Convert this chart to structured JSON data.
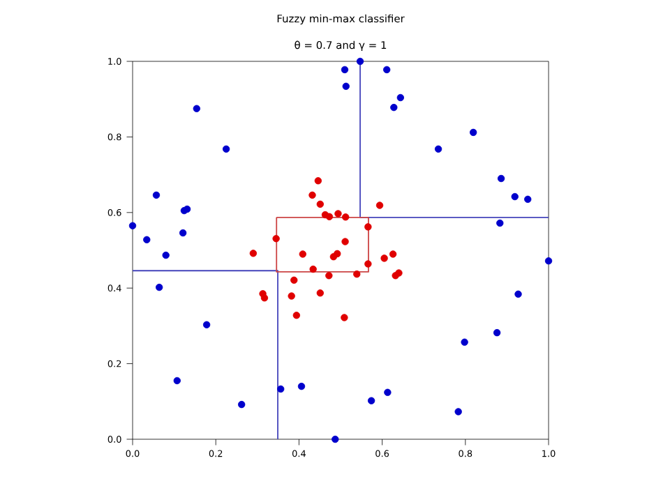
{
  "chart_data": {
    "type": "scatter",
    "title": "Fuzzy min-max classifier",
    "subtitle": "θ = 0.7 and γ = 1",
    "xlim": [
      0,
      1
    ],
    "ylim": [
      0,
      1
    ],
    "xticks": [
      {
        "value": 0,
        "label": "0.0"
      },
      {
        "value": 0.2,
        "label": "0.2"
      },
      {
        "value": 0.4,
        "label": "0.4"
      },
      {
        "value": 0.6,
        "label": "0.6"
      },
      {
        "value": 0.8,
        "label": "0.8"
      },
      {
        "value": 1,
        "label": "1.0"
      }
    ],
    "yticks": [
      {
        "value": 0,
        "label": "0.0"
      },
      {
        "value": 0.2,
        "label": "0.2"
      },
      {
        "value": 0.4,
        "label": "0.4"
      },
      {
        "value": 0.6,
        "label": "0.6"
      },
      {
        "value": 0.8,
        "label": "0.8"
      },
      {
        "value": 1,
        "label": "1.0"
      }
    ],
    "series": [
      {
        "marker": "circle",
        "color": "#0000cc",
        "x": [
          0,
          0.034,
          0.057,
          0.08,
          0.124,
          0.131,
          0.121,
          0.154,
          0.225,
          0.064,
          0.178,
          0.107,
          0.262,
          0.356,
          0.406,
          0.487,
          0.51,
          0.513,
          0.547,
          0.611,
          0.644,
          0.628,
          0.735,
          0.819,
          0.886,
          0.919,
          0.95,
          0.883,
          1.0,
          0.927,
          0.876,
          0.798,
          0.783,
          0.574,
          0.613
        ],
        "values": [
          0.565,
          0.528,
          0.646,
          0.487,
          0.605,
          0.609,
          0.546,
          0.875,
          0.768,
          0.402,
          0.303,
          0.155,
          0.092,
          0.133,
          0.14,
          0.0,
          0.978,
          0.934,
          1.0,
          0.978,
          0.904,
          0.878,
          0.768,
          0.812,
          0.69,
          0.642,
          0.635,
          0.572,
          0.472,
          0.384,
          0.282,
          0.257,
          0.073,
          0.102,
          0.124
        ]
      },
      {
        "marker": "circle",
        "color": "#e00000",
        "x": [
          0.432,
          0.446,
          0.451,
          0.463,
          0.473,
          0.494,
          0.512,
          0.345,
          0.29,
          0.594,
          0.566,
          0.511,
          0.409,
          0.434,
          0.483,
          0.492,
          0.472,
          0.388,
          0.451,
          0.382,
          0.313,
          0.317,
          0.394,
          0.509,
          0.539,
          0.566,
          0.605,
          0.626,
          0.632,
          0.64
        ],
        "values": [
          0.646,
          0.684,
          0.622,
          0.594,
          0.589,
          0.597,
          0.588,
          0.531,
          0.492,
          0.619,
          0.562,
          0.523,
          0.49,
          0.45,
          0.483,
          0.491,
          0.433,
          0.421,
          0.387,
          0.379,
          0.385,
          0.374,
          0.328,
          0.322,
          0.437,
          0.464,
          0.479,
          0.49,
          0.433,
          0.44
        ]
      },
      {
        "type": "line",
        "marker": "none",
        "color": "#4444bb",
        "x": [
          0.547,
          0.547,
          1
        ],
        "values": [
          1,
          0.587,
          0.587
        ]
      },
      {
        "type": "line",
        "marker": "none",
        "color": "#4444bb",
        "x": [
          0,
          0.349,
          0.349
        ],
        "values": [
          0.446,
          0.446,
          0
        ]
      },
      {
        "type": "line",
        "marker": "none",
        "color": "#cc4444",
        "x": [
          0.346,
          0.346,
          0.567,
          0.567
        ],
        "values": [
          0.587,
          0.443,
          0.443,
          0.587
        ]
      },
      {
        "type": "line",
        "marker": "none",
        "color": "#cc4444",
        "x": [
          0.346,
          0.567
        ],
        "values": [
          0.587,
          0.587
        ]
      }
    ]
  }
}
